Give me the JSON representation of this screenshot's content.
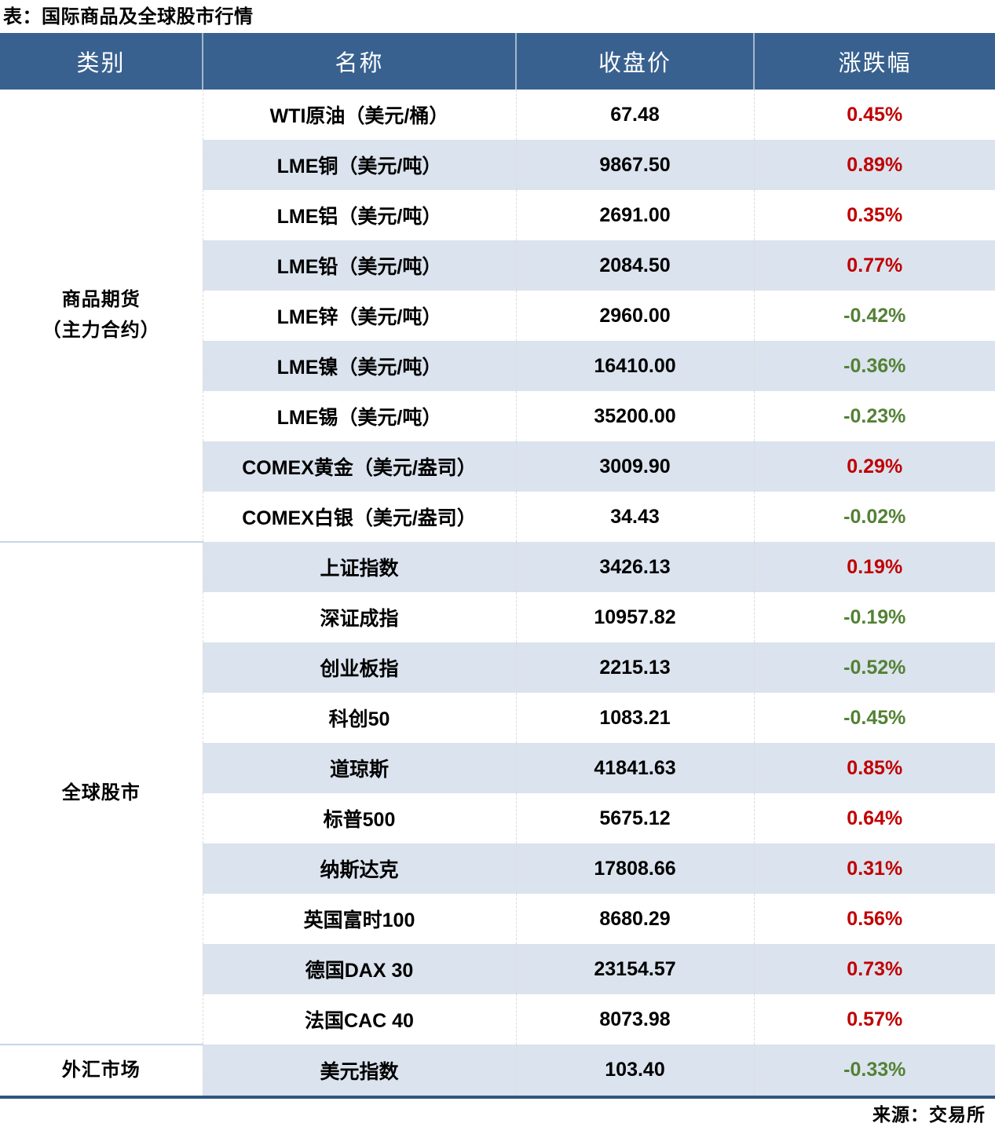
{
  "title": "表：国际商品及全球股市行情",
  "source": "来源：交易所",
  "colors": {
    "header_bg": "#38618F",
    "header_text": "#FFFFFF",
    "stripe": "#DBE3EE",
    "up": "#C00000",
    "down": "#538135",
    "bottom_border": "#2F577F",
    "section_divider": "#C5D6E8"
  },
  "chart_data": {
    "type": "table",
    "title": "表：国际商品及全球股市行情",
    "source": "来源：交易所",
    "columns": [
      "类别",
      "名称",
      "收盘价",
      "涨跌幅"
    ],
    "legend_note": "up = red (#C00000), down = green (#538135)",
    "sections": [
      {
        "category": "商品期货（主力合约）",
        "category_lines": [
          "商品期货",
          "（主力合约）"
        ],
        "rows": [
          {
            "name": "WTI原油（美元/桶）",
            "close": "67.48",
            "change": "0.45%",
            "direction": "up"
          },
          {
            "name": "LME铜（美元/吨）",
            "close": "9867.50",
            "change": "0.89%",
            "direction": "up"
          },
          {
            "name": "LME铝（美元/吨）",
            "close": "2691.00",
            "change": "0.35%",
            "direction": "up"
          },
          {
            "name": "LME铅（美元/吨）",
            "close": "2084.50",
            "change": "0.77%",
            "direction": "up"
          },
          {
            "name": "LME锌（美元/吨）",
            "close": "2960.00",
            "change": "-0.42%",
            "direction": "down"
          },
          {
            "name": "LME镍（美元/吨）",
            "close": "16410.00",
            "change": "-0.36%",
            "direction": "down"
          },
          {
            "name": "LME锡（美元/吨）",
            "close": "35200.00",
            "change": "-0.23%",
            "direction": "down"
          },
          {
            "name": "COMEX黄金（美元/盎司）",
            "close": "3009.90",
            "change": "0.29%",
            "direction": "up"
          },
          {
            "name": "COMEX白银（美元/盎司）",
            "close": "34.43",
            "change": "-0.02%",
            "direction": "down"
          }
        ]
      },
      {
        "category": "全球股市",
        "category_lines": [
          "全球股市"
        ],
        "rows": [
          {
            "name": "上证指数",
            "close": "3426.13",
            "change": "0.19%",
            "direction": "up"
          },
          {
            "name": "深证成指",
            "close": "10957.82",
            "change": "-0.19%",
            "direction": "down"
          },
          {
            "name": "创业板指",
            "close": "2215.13",
            "change": "-0.52%",
            "direction": "down"
          },
          {
            "name": "科创50",
            "close": "1083.21",
            "change": "-0.45%",
            "direction": "down"
          },
          {
            "name": "道琼斯",
            "close": "41841.63",
            "change": "0.85%",
            "direction": "up"
          },
          {
            "name": "标普500",
            "close": "5675.12",
            "change": "0.64%",
            "direction": "up"
          },
          {
            "name": "纳斯达克",
            "close": "17808.66",
            "change": "0.31%",
            "direction": "up"
          },
          {
            "name": "英国富时100",
            "close": "8680.29",
            "change": "0.56%",
            "direction": "up"
          },
          {
            "name": "德国DAX 30",
            "close": "23154.57",
            "change": "0.73%",
            "direction": "up"
          },
          {
            "name": "法国CAC 40",
            "close": "8073.98",
            "change": "0.57%",
            "direction": "up"
          }
        ]
      },
      {
        "category": "外汇市场",
        "category_lines": [
          "外汇市场"
        ],
        "rows": [
          {
            "name": "美元指数",
            "close": "103.40",
            "change": "-0.33%",
            "direction": "down"
          }
        ]
      }
    ]
  }
}
